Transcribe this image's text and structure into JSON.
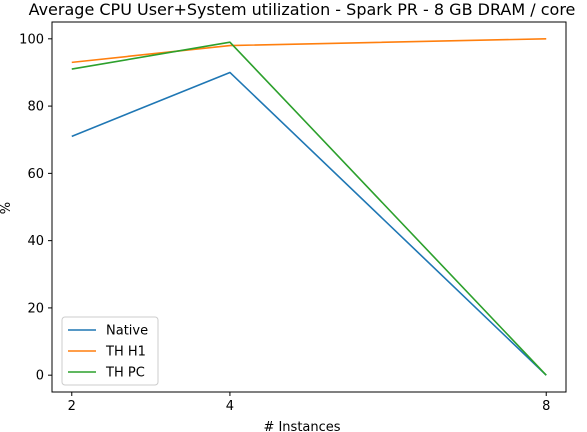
{
  "chart_data": {
    "type": "line",
    "title": "Average CPU User+System utilization - Spark PR - 8 GB DRAM / core",
    "xlabel": "# Instances",
    "ylabel": "%",
    "x": [
      2,
      4,
      8
    ],
    "xticks": [
      "2",
      "4",
      "8"
    ],
    "yticks": [
      "0",
      "20",
      "40",
      "60",
      "80",
      "100"
    ],
    "xlim": [
      1.75,
      8.25
    ],
    "ylim": [
      -5,
      105
    ],
    "grid": false,
    "legend_position": "lower-left",
    "series": [
      {
        "name": "Native",
        "values": [
          71,
          90,
          0
        ],
        "color": "#1f77b4"
      },
      {
        "name": "TH H1",
        "values": [
          93,
          98,
          100
        ],
        "color": "#ff7f0e"
      },
      {
        "name": "TH PC",
        "values": [
          91,
          99,
          0
        ],
        "color": "#2ca02c"
      }
    ]
  }
}
